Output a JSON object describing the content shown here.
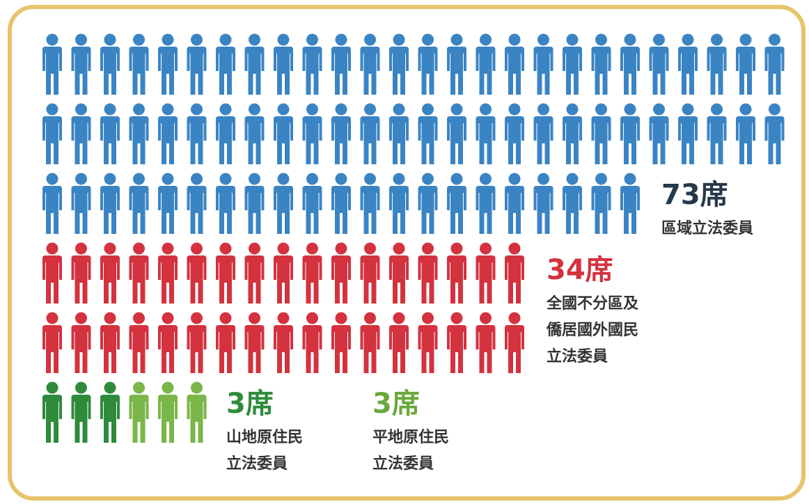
{
  "chart_data": {
    "type": "pictogram",
    "categories": [
      "區域立法委員",
      "全國不分區及僑居國外國民立法委員",
      "山地原住民立法委員",
      "平地原住民立法委員"
    ],
    "values": [
      73,
      34,
      3,
      3
    ],
    "value_labels": [
      "73席",
      "34席",
      "3席",
      "3席"
    ],
    "colors": [
      "#3a84c4",
      "#d3323e",
      "#2e8b3a",
      "#7ab648"
    ],
    "label_colors": [
      "#26384a",
      "#d3323e",
      "#2e8b3a",
      "#6aa83c"
    ]
  }
}
